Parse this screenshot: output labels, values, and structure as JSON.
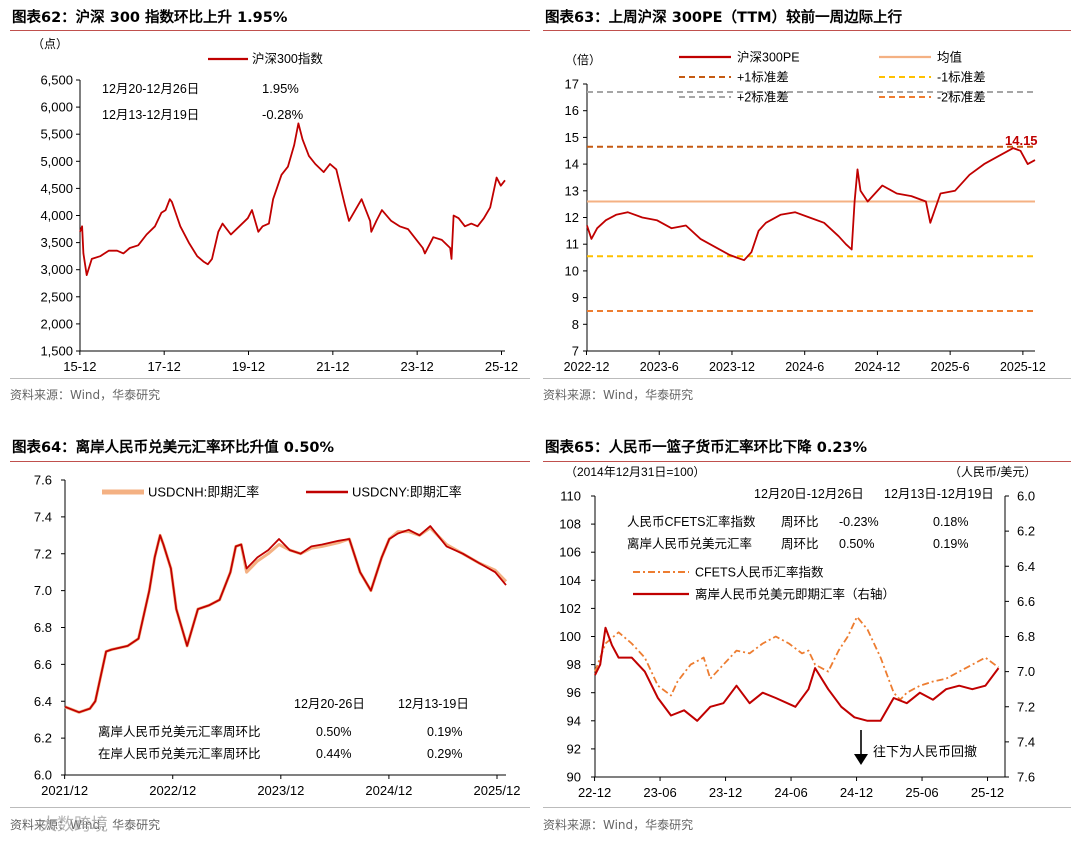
{
  "page": {
    "watermark": "大数跨境"
  },
  "chart_data": [
    {
      "type": "line",
      "title": "图表62：沪深 300 指数环比上升 1.95%",
      "source": "资料来源：Wind，华泰研究",
      "unit_label": "（点）",
      "legend": [
        "沪深300指数"
      ],
      "ylim": [
        1500,
        6500
      ],
      "y_ticks": [
        "1,500",
        "2,000",
        "2,500",
        "3,000",
        "3,500",
        "4,000",
        "4,500",
        "5,000",
        "5,500",
        "6,000",
        "6,500"
      ],
      "x_ticks": [
        "15-12",
        "17-12",
        "19-12",
        "21-12",
        "23-12",
        "25-12"
      ],
      "x_range": [
        2015.92,
        2026.0
      ],
      "annotation": [
        {
          "period": "12月20-12月26日",
          "value": "1.95%"
        },
        {
          "period": "12月13-12月19日",
          "value": "-0.28%"
        }
      ],
      "series": [
        {
          "name": "沪深300指数",
          "color": "#c00000",
          "x": [
            2015.92,
            2015.97,
            2016.0,
            2016.08,
            2016.2,
            2016.4,
            2016.6,
            2016.8,
            2016.95,
            2017.1,
            2017.3,
            2017.5,
            2017.7,
            2017.85,
            2017.95,
            2018.05,
            2018.1,
            2018.3,
            2018.5,
            2018.7,
            2018.85,
            2018.95,
            2019.05,
            2019.2,
            2019.3,
            2019.4,
            2019.5,
            2019.7,
            2019.9,
            2020.0,
            2020.15,
            2020.25,
            2020.4,
            2020.5,
            2020.7,
            2020.85,
            2021.0,
            2021.1,
            2021.2,
            2021.35,
            2021.5,
            2021.7,
            2021.85,
            2022.0,
            2022.2,
            2022.3,
            2022.45,
            2022.6,
            2022.8,
            2022.83,
            2022.95,
            2023.08,
            2023.3,
            2023.5,
            2023.7,
            2023.9,
            2024.05,
            2024.1,
            2024.3,
            2024.5,
            2024.7,
            2024.73,
            2024.78,
            2024.9,
            2025.05,
            2025.2,
            2025.35,
            2025.5,
            2025.65,
            2025.8,
            2025.9,
            2026.0
          ],
          "y": [
            3700,
            3800,
            3300,
            2900,
            3200,
            3250,
            3350,
            3350,
            3300,
            3400,
            3450,
            3650,
            3800,
            4050,
            4100,
            4300,
            4250,
            3800,
            3500,
            3250,
            3150,
            3100,
            3200,
            3700,
            3850,
            3750,
            3650,
            3800,
            3950,
            4100,
            3700,
            3800,
            3850,
            4300,
            4750,
            4900,
            5300,
            5700,
            5400,
            5100,
            4950,
            4800,
            4950,
            4850,
            4200,
            3900,
            4100,
            4300,
            3900,
            3700,
            3900,
            4100,
            3900,
            3800,
            3750,
            3550,
            3400,
            3300,
            3600,
            3550,
            3400,
            3200,
            4000,
            3950,
            3800,
            3850,
            3800,
            3950,
            4150,
            4700,
            4550,
            4650
          ]
        }
      ]
    },
    {
      "type": "line",
      "title": "图表63：上周沪深 300PE（TTM）较前一周边际上行",
      "source": "资料来源：Wind，华泰研究",
      "unit_label": "（倍）",
      "legend": [
        "沪深300PE",
        "均值",
        "+1标准差",
        "-1标准差",
        "+2标准差",
        "-2标准差"
      ],
      "ylim": [
        7,
        17
      ],
      "y_ticks": [
        "7",
        "8",
        "9",
        "10",
        "11",
        "12",
        "13",
        "14",
        "15",
        "16",
        "17"
      ],
      "x_ticks": [
        "2022-12",
        "2023-6",
        "2023-12",
        "2024-6",
        "2024-12",
        "2025-6",
        "2025-12"
      ],
      "x_range": [
        2022.92,
        2026.0
      ],
      "callout": "14.15",
      "reference_lines": [
        {
          "name": "均值",
          "value": 12.6,
          "color": "#f4b183",
          "dash": "solid"
        },
        {
          "name": "+1标准差",
          "value": 14.65,
          "color": "#c55a11",
          "dash": "dashed"
        },
        {
          "name": "-1标准差",
          "value": 10.55,
          "color": "#ffc000",
          "dash": "dashed"
        },
        {
          "name": "+2标准差",
          "value": 16.7,
          "color": "#a6a6a6",
          "dash": "dashed"
        },
        {
          "name": "-2标准差",
          "value": 8.5,
          "color": "#ed7d31",
          "dash": "dashed"
        }
      ],
      "series": [
        {
          "name": "沪深300PE",
          "color": "#c00000",
          "x": [
            2022.92,
            2022.95,
            2022.99,
            2023.05,
            2023.12,
            2023.2,
            2023.3,
            2023.4,
            2023.5,
            2023.6,
            2023.7,
            2023.8,
            2023.9,
            2023.95,
            2024.0,
            2024.05,
            2024.1,
            2024.15,
            2024.25,
            2024.35,
            2024.45,
            2024.55,
            2024.65,
            2024.7,
            2024.74,
            2024.76,
            2024.78,
            2024.8,
            2024.85,
            2024.95,
            2025.05,
            2025.15,
            2025.25,
            2025.28,
            2025.35,
            2025.45,
            2025.55,
            2025.65,
            2025.75,
            2025.85,
            2025.9,
            2025.95,
            2026.0
          ],
          "y": [
            11.7,
            11.2,
            11.6,
            11.9,
            12.1,
            12.2,
            12.0,
            11.9,
            11.6,
            11.7,
            11.2,
            10.9,
            10.6,
            10.5,
            10.4,
            10.7,
            11.5,
            11.8,
            12.1,
            12.2,
            12.0,
            11.8,
            11.3,
            11.0,
            10.8,
            12.6,
            13.8,
            13.0,
            12.6,
            13.2,
            12.9,
            12.8,
            12.6,
            11.8,
            12.9,
            13.0,
            13.6,
            14.0,
            14.3,
            14.6,
            14.5,
            14.0,
            14.15
          ]
        }
      ]
    },
    {
      "type": "line",
      "title": "图表64：离岸人民币兑美元汇率环比升值 0.50%",
      "source": "资料来源：Wind，华泰研究",
      "legend": [
        "USDCNH:即期汇率",
        "USDCNY:即期汇率"
      ],
      "ylim": [
        6.0,
        7.6
      ],
      "y_ticks": [
        "6.0",
        "6.2",
        "6.4",
        "6.6",
        "6.8",
        "7.0",
        "7.2",
        "7.4",
        "7.6"
      ],
      "x_ticks": [
        "2021/12",
        "2022/12",
        "2023/12",
        "2024/12",
        "2025/12"
      ],
      "x_range": [
        2021.92,
        2026.0
      ],
      "table": {
        "headers": [
          "12月20-26日",
          "12月13-19日"
        ],
        "rows": [
          {
            "label": "离岸人民币兑美元汇率周环比",
            "v1": "0.50%",
            "v2": "0.19%"
          },
          {
            "label": "在岸人民币兑美元汇率周环比",
            "v1": "0.44%",
            "v2": "0.29%"
          }
        ]
      },
      "series": [
        {
          "name": "USDCNH:即期汇率",
          "color": "#f4b183",
          "x": [
            2021.92,
            2022.05,
            2022.15,
            2022.2,
            2022.3,
            2022.35,
            2022.5,
            2022.6,
            2022.7,
            2022.75,
            2022.8,
            2022.83,
            2022.9,
            2022.95,
            2023.05,
            2023.15,
            2023.25,
            2023.35,
            2023.45,
            2023.5,
            2023.55,
            2023.6,
            2023.7,
            2023.8,
            2023.9,
            2024.0,
            2024.1,
            2024.2,
            2024.3,
            2024.45,
            2024.55,
            2024.65,
            2024.75,
            2024.85,
            2024.92,
            2025.0,
            2025.1,
            2025.2,
            2025.3,
            2025.45,
            2025.6,
            2025.75,
            2025.9,
            2026.0
          ],
          "y": [
            6.37,
            6.34,
            6.36,
            6.4,
            6.67,
            6.68,
            6.7,
            6.74,
            7.0,
            7.18,
            7.3,
            7.25,
            7.12,
            6.9,
            6.7,
            6.9,
            6.92,
            6.95,
            7.1,
            7.24,
            7.25,
            7.1,
            7.16,
            7.2,
            7.25,
            7.22,
            7.2,
            7.23,
            7.24,
            7.26,
            7.28,
            7.1,
            7.0,
            7.18,
            7.28,
            7.32,
            7.32,
            7.3,
            7.34,
            7.25,
            7.2,
            7.15,
            7.11,
            7.05
          ]
        },
        {
          "name": "USDCNY:即期汇率",
          "color": "#c00000",
          "x": [
            2021.92,
            2022.05,
            2022.15,
            2022.2,
            2022.3,
            2022.35,
            2022.5,
            2022.6,
            2022.7,
            2022.75,
            2022.8,
            2022.83,
            2022.9,
            2022.95,
            2023.05,
            2023.15,
            2023.25,
            2023.35,
            2023.45,
            2023.5,
            2023.55,
            2023.6,
            2023.7,
            2023.8,
            2023.9,
            2024.0,
            2024.1,
            2024.2,
            2024.3,
            2024.45,
            2024.55,
            2024.65,
            2024.75,
            2024.85,
            2024.92,
            2025.0,
            2025.1,
            2025.2,
            2025.3,
            2025.45,
            2025.6,
            2025.75,
            2025.9,
            2026.0
          ],
          "y": [
            6.37,
            6.34,
            6.36,
            6.4,
            6.67,
            6.68,
            6.7,
            6.74,
            7.0,
            7.18,
            7.3,
            7.25,
            7.12,
            6.9,
            6.7,
            6.9,
            6.92,
            6.95,
            7.1,
            7.24,
            7.25,
            7.12,
            7.18,
            7.22,
            7.28,
            7.22,
            7.2,
            7.24,
            7.25,
            7.27,
            7.28,
            7.1,
            7.0,
            7.18,
            7.28,
            7.31,
            7.33,
            7.3,
            7.35,
            7.24,
            7.2,
            7.15,
            7.1,
            7.03
          ]
        }
      ]
    },
    {
      "type": "line",
      "title": "图表65：人民币一篮子货币汇率环比下降 0.23%",
      "source": "资料来源：Wind，华泰研究",
      "left_unit": "（2014年12月31日=100）",
      "right_unit": "（人民币/美元）",
      "legend": [
        "CFETS人民币汇率指数",
        "离岸人民币兑美元即期汇率（右轴）"
      ],
      "ylim_left": [
        90,
        110
      ],
      "ylim_right": [
        7.6,
        6.0
      ],
      "y_ticks_left": [
        "90",
        "92",
        "94",
        "96",
        "98",
        "100",
        "102",
        "104",
        "106",
        "108",
        "110"
      ],
      "y_ticks_right": [
        "6.0",
        "6.2",
        "6.4",
        "6.6",
        "6.8",
        "7.0",
        "7.2",
        "7.4",
        "7.6"
      ],
      "x_ticks": [
        "22-12",
        "23-06",
        "23-12",
        "24-06",
        "24-12",
        "25-06",
        "25-12"
      ],
      "x_range": [
        2022.92,
        2026.05
      ],
      "arrow_note": "往下为人民币回撤",
      "table": {
        "headers": [
          "12月20日-12月26日",
          "12月13日-12月19日"
        ],
        "rows": [
          {
            "label": "人民币CFETS汇率指数",
            "period": "周环比",
            "v1": "-0.23%",
            "v2": "0.18%"
          },
          {
            "label": "离岸人民币兑美元汇率",
            "period": "周环比",
            "v1": "0.50%",
            "v2": "0.19%"
          }
        ]
      },
      "series": [
        {
          "name": "CFETS人民币汇率指数",
          "color": "#ed7d31",
          "axis": "left",
          "x": [
            2022.92,
            2023.0,
            2023.1,
            2023.2,
            2023.3,
            2023.4,
            2023.5,
            2023.55,
            2023.65,
            2023.75,
            2023.8,
            2023.9,
            2024.0,
            2024.1,
            2024.2,
            2024.3,
            2024.4,
            2024.5,
            2024.55,
            2024.6,
            2024.7,
            2024.78,
            2024.85,
            2024.92,
            2025.0,
            2025.1,
            2025.2,
            2025.25,
            2025.3,
            2025.4,
            2025.5,
            2025.6,
            2025.7,
            2025.8,
            2025.9,
            2026.0
          ],
          "y": [
            97.5,
            99.5,
            100.3,
            99.5,
            98.5,
            96.5,
            95.8,
            96.8,
            98.0,
            98.5,
            97.0,
            98.0,
            99.0,
            98.8,
            99.5,
            100.0,
            99.5,
            98.8,
            99.0,
            98.0,
            97.5,
            99.0,
            100.0,
            101.4,
            100.5,
            98.5,
            96.0,
            95.5,
            96.0,
            96.5,
            96.8,
            97.0,
            97.5,
            98.0,
            98.5,
            97.8
          ]
        },
        {
          "name": "离岸人民币兑美元即期汇率（右轴）",
          "color": "#c00000",
          "axis": "right",
          "x": [
            2022.92,
            2022.96,
            2023.0,
            2023.05,
            2023.1,
            2023.2,
            2023.3,
            2023.4,
            2023.5,
            2023.6,
            2023.7,
            2023.8,
            2023.9,
            2024.0,
            2024.1,
            2024.2,
            2024.3,
            2024.45,
            2024.55,
            2024.6,
            2024.7,
            2024.8,
            2024.9,
            2025.0,
            2025.1,
            2025.2,
            2025.3,
            2025.4,
            2025.5,
            2025.6,
            2025.7,
            2025.8,
            2025.9,
            2026.0
          ],
          "y": [
            7.02,
            6.96,
            6.75,
            6.85,
            6.92,
            6.92,
            7.0,
            7.15,
            7.25,
            7.22,
            7.28,
            7.2,
            7.18,
            7.08,
            7.18,
            7.12,
            7.15,
            7.2,
            7.1,
            6.98,
            7.1,
            7.2,
            7.26,
            7.28,
            7.28,
            7.15,
            7.18,
            7.12,
            7.16,
            7.1,
            7.08,
            7.1,
            7.08,
            6.98
          ]
        }
      ]
    }
  ]
}
